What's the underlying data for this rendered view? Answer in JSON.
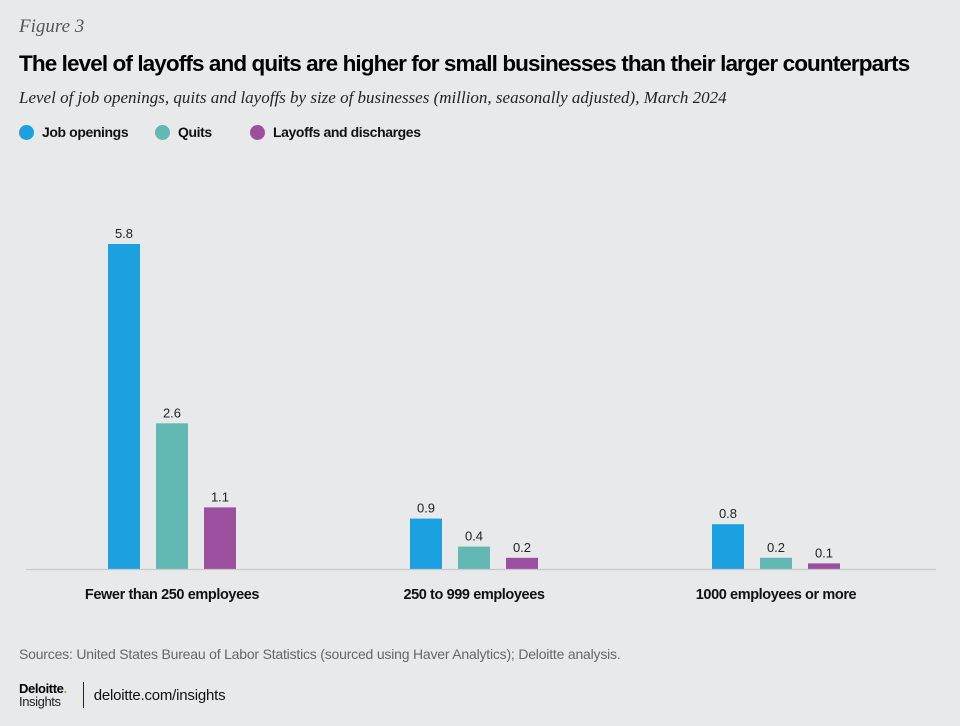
{
  "figure_label": "Figure 3",
  "footer": {
    "sources": "Sources: United States Bureau of Labor Statistics (sourced using Haver Analytics); Deloitte analysis.",
    "logo_brand": "Deloitte",
    "logo_dot": ".",
    "logo_sub": "Insights",
    "link": "deloitte.com/insights"
  },
  "chart_data": {
    "type": "bar",
    "title": "The level of layoffs and quits are higher for small businesses than their larger counterparts",
    "subtitle": "Level of job openings, quits and layoffs by size of businesses (million, seasonally adjusted), March 2024",
    "xlabel": "",
    "ylabel": "",
    "ylim": [
      0,
      6
    ],
    "grid": false,
    "legend_position": "top-left",
    "categories": [
      "Fewer than 250 employees",
      "250 to 999 employees",
      "1000 employees or more"
    ],
    "series": [
      {
        "name": "Job openings",
        "color": "#1ba1e0",
        "values": [
          5.8,
          0.9,
          0.8
        ],
        "labels": [
          "5.8",
          "0.9",
          "0.8"
        ]
      },
      {
        "name": "Quits",
        "color": "#62b8b3",
        "values": [
          2.6,
          0.4,
          0.2
        ],
        "labels": [
          "2.6",
          "0.4",
          "0.2"
        ]
      },
      {
        "name": "Layoffs and discharges",
        "color": "#9c4f9f",
        "values": [
          1.1,
          0.2,
          0.1
        ],
        "labels": [
          "1.1",
          "0.2",
          "0.1"
        ]
      }
    ]
  }
}
